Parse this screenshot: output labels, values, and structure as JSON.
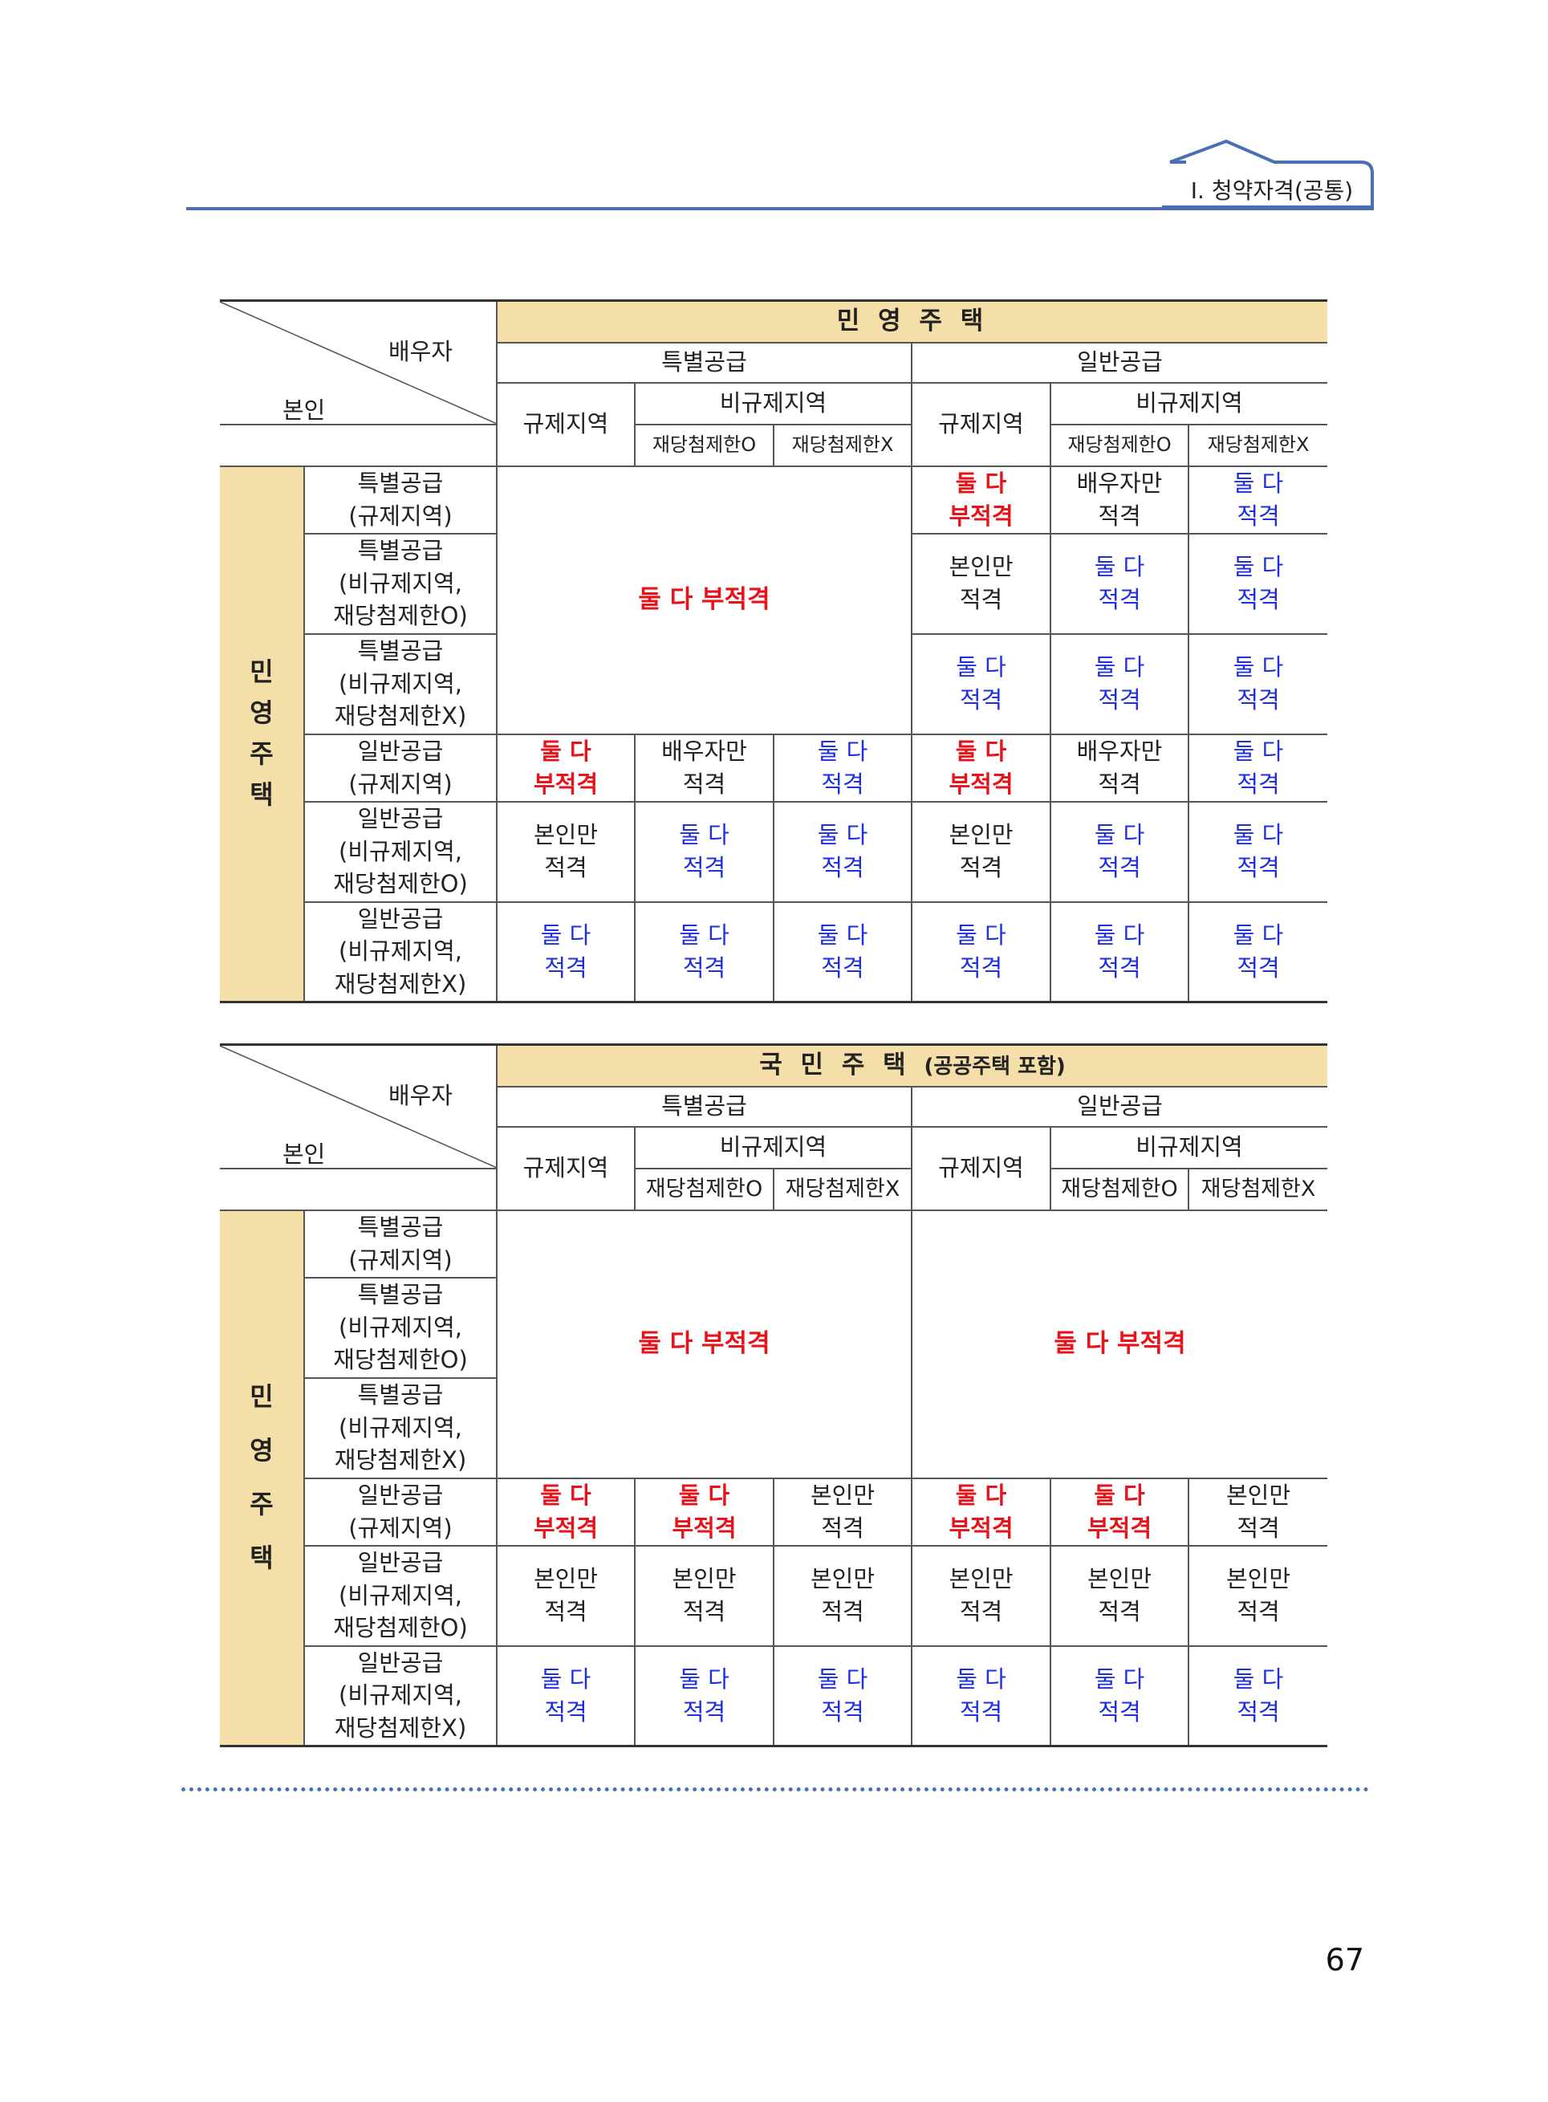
{
  "header": {
    "chapter": "Ⅰ. 청약자격(공통)"
  },
  "common": {
    "spouse": "배우자",
    "self": "본인",
    "special": "특별공급",
    "general": "일반공급",
    "regulated": "규제지역",
    "nonregulated": "비규제지역",
    "rewin_o": "재당첨제한O",
    "rewin_x": "재당첨제한X",
    "side_label": "민\n영\n주\n택",
    "row_labels": [
      "특별공급\n(규제지역)",
      "특별공급\n(비규제지역,\n재당첨제한O)",
      "특별공급\n(비규제지역,\n재당첨제한X)",
      "일반공급\n(규제지역)",
      "일반공급\n(비규제지역,\n재당첨제한O)",
      "일반공급\n(비규제지역,\n재당첨제한X)"
    ]
  },
  "table1": {
    "title": "민 영 주 택",
    "merged": "둘 다 부적격",
    "cells": [
      [
        null,
        null,
        null,
        "둘 다\n부적격",
        "배우자만\n적격",
        "둘 다\n적격"
      ],
      [
        null,
        null,
        null,
        "본인만\n적격",
        "둘 다\n적격",
        "둘 다\n적격"
      ],
      [
        null,
        null,
        null,
        "둘 다\n적격",
        "둘 다\n적격",
        "둘 다\n적격"
      ],
      [
        "둘 다\n부적격",
        "배우자만\n적격",
        "둘 다\n적격",
        "둘 다\n부적격",
        "배우자만\n적격",
        "둘 다\n적격"
      ],
      [
        "본인만\n적격",
        "둘 다\n적격",
        "둘 다\n적격",
        "본인만\n적격",
        "둘 다\n적격",
        "둘 다\n적격"
      ],
      [
        "둘 다\n적격",
        "둘 다\n적격",
        "둘 다\n적격",
        "둘 다\n적격",
        "둘 다\n적격",
        "둘 다\n적격"
      ]
    ]
  },
  "table2": {
    "title": "국 민 주 택",
    "title_sub": "(공공주택 포함)",
    "merged_left": "둘 다 부적격",
    "merged_right": "둘 다 부적격",
    "cells": [
      [
        "둘 다\n부적격",
        "둘 다\n부적격",
        "본인만\n적격",
        "둘 다\n부적격",
        "둘 다\n부적격",
        "본인만\n적격"
      ],
      [
        "본인만\n적격",
        "본인만\n적격",
        "본인만\n적격",
        "본인만\n적격",
        "본인만\n적격",
        "본인만\n적격"
      ],
      [
        "둘 다\n적격",
        "둘 다\n적격",
        "둘 다\n적격",
        "둘 다\n적격",
        "둘 다\n적격",
        "둘 다\n적격"
      ]
    ]
  },
  "page_number": "67",
  "colors": {
    "header_bg": "#f5dfa8",
    "red": "#e8121b",
    "blue": "#1d2fe0",
    "accent": "#4a6fb5"
  }
}
